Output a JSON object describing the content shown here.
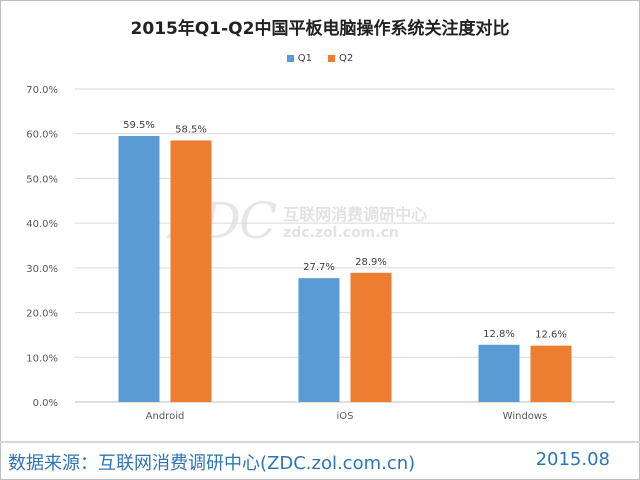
{
  "chart_data": {
    "type": "bar",
    "title": "2015年Q1-Q2中国平板电脑操作系统关注度对比",
    "categories": [
      "Android",
      "iOS",
      "Windows"
    ],
    "series": [
      {
        "name": "Q1",
        "values": [
          59.5,
          27.7,
          12.8
        ],
        "labels": [
          "59.5%",
          "27.7%",
          "12.8%"
        ]
      },
      {
        "name": "Q2",
        "values": [
          58.5,
          28.9,
          12.6
        ],
        "labels": [
          "58.5%",
          "28.9%",
          "12.6%"
        ]
      }
    ],
    "ylim": [
      0,
      70
    ],
    "yticks": [
      "0.0%",
      "10.0%",
      "20.0%",
      "30.0%",
      "40.0%",
      "50.0%",
      "60.0%",
      "70.0%"
    ],
    "gridlines": true,
    "legend_position": "top"
  },
  "colors": {
    "Q1": "#5b9bd5",
    "Q2": "#ed7d31",
    "grid": "#d9d9d9",
    "axis_text": "#595959"
  },
  "watermark": {
    "logo": "ZDC",
    "name": "互联网消费调研中心",
    "url": "zdc.zol.com.cn"
  },
  "footer": {
    "source": "数据来源：互联网消费调研中心(ZDC.zol.com.cn)",
    "date": "2015.08"
  }
}
